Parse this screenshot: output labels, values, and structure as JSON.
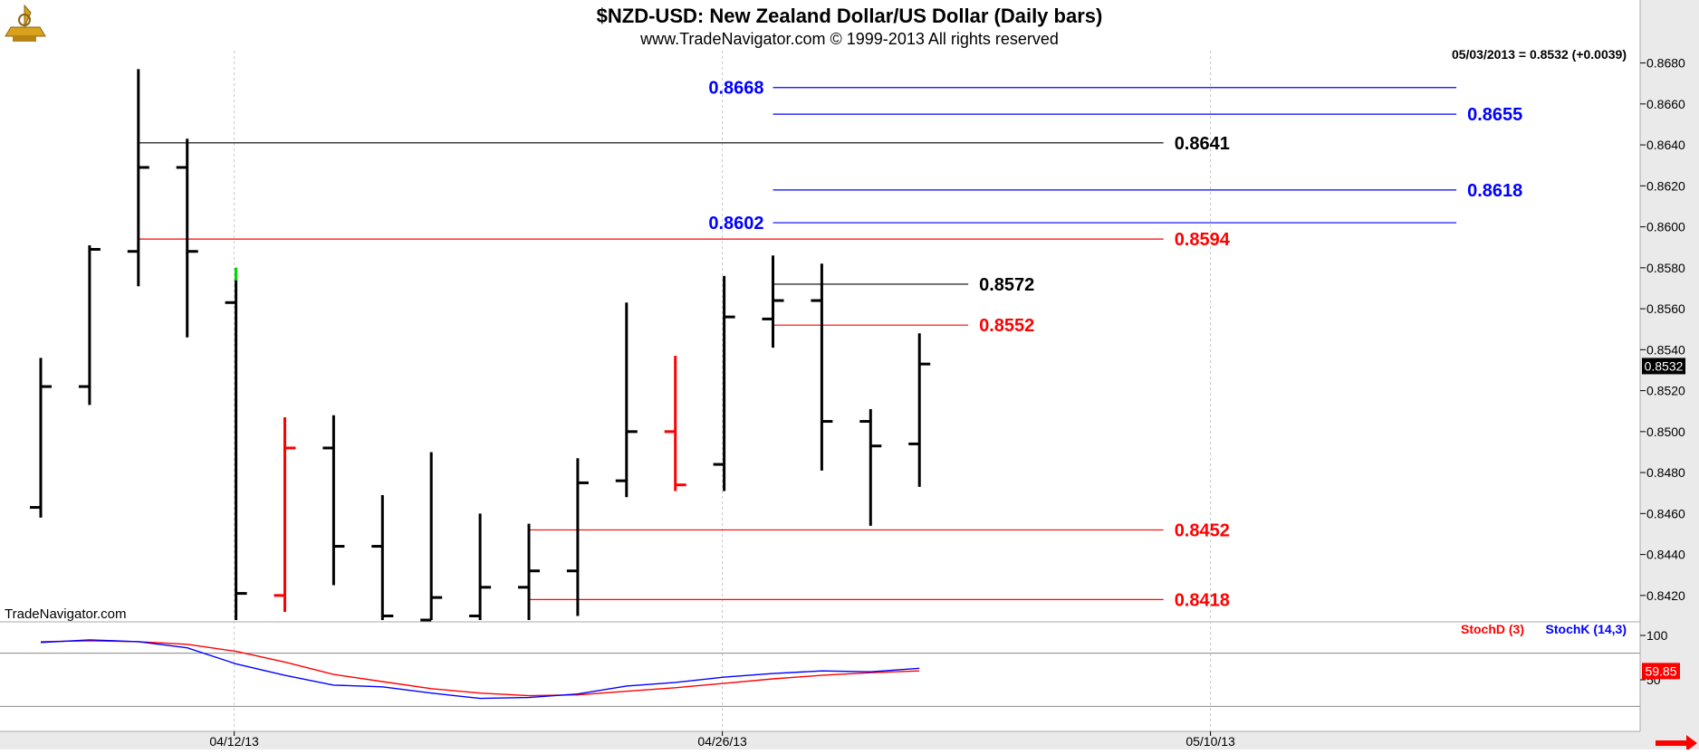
{
  "header": {
    "title": "$NZD-USD:  New Zealand Dollar/US Dollar  (Daily bars)",
    "copyright": "www.TradeNavigator.com © 1999-2013 All rights reserved",
    "last_quote": "05/03/2013 = 0.8532 (+0.0039)",
    "watermark": "TradeNavigator.com"
  },
  "colors": {
    "background": "#ffffff",
    "axis_panel": "#eaeaea",
    "grid": "#c8c8c8",
    "bar_up": "#000000",
    "bar_down": "#ff0000",
    "bar_highlight": "#00dd00",
    "level_black": "#000000",
    "level_red": "#ff0000",
    "level_blue": "#0000ff",
    "stoch_d": "#ff0000",
    "stoch_k": "#0000ff",
    "last_price_box": "#000000",
    "stoch_value_box": "#ff0000"
  },
  "chart_data": [
    {
      "type": "ohlc",
      "panel": "price",
      "yaxis": {
        "ylim": [
          0.8408,
          0.8686
        ],
        "ticks": [
          "0.8420",
          "0.8440",
          "0.8460",
          "0.8480",
          "0.8500",
          "0.8520",
          "0.8540",
          "0.8560",
          "0.8580",
          "0.8600",
          "0.8620",
          "0.8640",
          "0.8660",
          "0.8680"
        ]
      },
      "xaxis": {
        "tick_labels": [
          {
            "label": "04/12/13",
            "date": "2013-04-12"
          },
          {
            "label": "04/26/13",
            "date": "2013-04-26"
          },
          {
            "label": "05/10/13",
            "date": "2013-05-10"
          }
        ],
        "xlim": [
          "2013-04-08",
          "2013-05-23"
        ]
      },
      "bars": [
        {
          "date": "2013-04-08",
          "o": 0.8463,
          "h": 0.8536,
          "l": 0.8458,
          "c": 0.8522,
          "color": "black"
        },
        {
          "date": "2013-04-09",
          "o": 0.8522,
          "h": 0.8591,
          "l": 0.8513,
          "c": 0.8589,
          "color": "black"
        },
        {
          "date": "2013-04-10",
          "o": 0.8588,
          "h": 0.8677,
          "l": 0.8571,
          "c": 0.8629,
          "color": "black"
        },
        {
          "date": "2013-04-11",
          "o": 0.8629,
          "h": 0.8643,
          "l": 0.8546,
          "c": 0.8588,
          "color": "black"
        },
        {
          "date": "2013-04-12",
          "o": 0.8563,
          "h": 0.858,
          "l": 0.8408,
          "c": 0.8421,
          "color": "black",
          "high_color": "green"
        },
        {
          "date": "2013-04-15",
          "o": 0.842,
          "h": 0.8507,
          "l": 0.8412,
          "c": 0.8492,
          "color": "red"
        },
        {
          "date": "2013-04-16",
          "o": 0.8492,
          "h": 0.8508,
          "l": 0.8425,
          "c": 0.8444,
          "color": "black"
        },
        {
          "date": "2013-04-17",
          "o": 0.8444,
          "h": 0.8469,
          "l": 0.8408,
          "c": 0.841,
          "color": "black"
        },
        {
          "date": "2013-04-18",
          "o": 0.8408,
          "h": 0.849,
          "l": 0.8408,
          "c": 0.8419,
          "color": "black"
        },
        {
          "date": "2013-04-19",
          "o": 0.841,
          "h": 0.846,
          "l": 0.8408,
          "c": 0.8424,
          "color": "black"
        },
        {
          "date": "2013-04-22",
          "o": 0.8424,
          "h": 0.8455,
          "l": 0.8408,
          "c": 0.8432,
          "color": "black"
        },
        {
          "date": "2013-04-23",
          "o": 0.8432,
          "h": 0.8487,
          "l": 0.841,
          "c": 0.8475,
          "color": "black"
        },
        {
          "date": "2013-04-24",
          "o": 0.8476,
          "h": 0.8563,
          "l": 0.8468,
          "c": 0.85,
          "color": "black"
        },
        {
          "date": "2013-04-25",
          "o": 0.85,
          "h": 0.8537,
          "l": 0.8471,
          "c": 0.8474,
          "color": "red"
        },
        {
          "date": "2013-04-26",
          "o": 0.8484,
          "h": 0.8576,
          "l": 0.8471,
          "c": 0.8556,
          "color": "black"
        },
        {
          "date": "2013-04-29",
          "o": 0.8555,
          "h": 0.8586,
          "l": 0.8541,
          "c": 0.8564,
          "color": "black"
        },
        {
          "date": "2013-04-30",
          "o": 0.8564,
          "h": 0.8582,
          "l": 0.8481,
          "c": 0.8505,
          "color": "black"
        },
        {
          "date": "2013-05-01",
          "o": 0.8505,
          "h": 0.8511,
          "l": 0.8454,
          "c": 0.8493,
          "color": "black"
        },
        {
          "date": "2013-05-02",
          "o": 0.8494,
          "h": 0.8548,
          "l": 0.8473,
          "c": 0.8533,
          "color": "black"
        }
      ],
      "levels": [
        {
          "value": "0.8668",
          "color": "blue",
          "from": "2013-04-29",
          "to": "2013-05-17",
          "label_side": "left"
        },
        {
          "value": "0.8655",
          "color": "blue",
          "from": "2013-04-29",
          "to": "2013-05-17",
          "label_side": "right"
        },
        {
          "value": "0.8641",
          "color": "black",
          "from": "2013-04-10",
          "to": "2013-05-09",
          "label_side": "right"
        },
        {
          "value": "0.8618",
          "color": "blue",
          "from": "2013-04-29",
          "to": "2013-05-17",
          "label_side": "right"
        },
        {
          "value": "0.8602",
          "color": "blue",
          "from": "2013-04-29",
          "to": "2013-05-17",
          "label_side": "left"
        },
        {
          "value": "0.8594",
          "color": "red",
          "from": "2013-04-10",
          "to": "2013-05-09",
          "label_side": "right"
        },
        {
          "value": "0.8572",
          "color": "black",
          "from": "2013-04-29",
          "to": "2013-05-03",
          "label_side": "right"
        },
        {
          "value": "0.8552",
          "color": "red",
          "from": "2013-04-29",
          "to": "2013-05-03",
          "label_side": "right"
        },
        {
          "value": "0.8452",
          "color": "red",
          "from": "2013-04-22",
          "to": "2013-05-09",
          "label_side": "right"
        },
        {
          "value": "0.8418",
          "color": "red",
          "from": "2013-04-22",
          "to": "2013-05-09",
          "label_side": "right"
        }
      ],
      "last_price_label": "0.8532"
    },
    {
      "type": "line",
      "panel": "stochastic",
      "ylim": [
        0,
        100
      ],
      "ticks": [
        "100",
        "50"
      ],
      "reference_lines": [
        80,
        20
      ],
      "series": [
        {
          "name": "StochD (3)",
          "color": "red",
          "values": [
            93,
            94,
            93,
            90,
            82,
            70,
            56,
            48,
            40,
            35,
            32,
            33,
            37,
            41,
            46,
            51,
            55,
            58,
            60
          ]
        },
        {
          "name": "StochK (14,3)",
          "color": "blue",
          "values": [
            92,
            95,
            93,
            86,
            68,
            55,
            44,
            42,
            35,
            29,
            30,
            34,
            43,
            47,
            53,
            57,
            60,
            59,
            63
          ]
        }
      ],
      "value_label": "59.85"
    }
  ]
}
